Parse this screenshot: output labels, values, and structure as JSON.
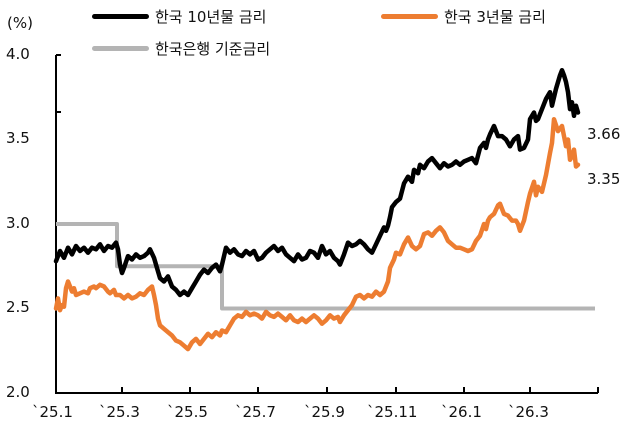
{
  "chart_data": {
    "type": "line",
    "title": "",
    "ylabel": "(%)",
    "xlabel": "",
    "ylim": [
      2.0,
      4.0
    ],
    "yticks": [
      "4.0",
      "3.5",
      "3.0",
      "2.5",
      "2.0"
    ],
    "xticks": [
      "`25.1",
      "`25.3",
      "`25.5",
      "`25.7",
      "`25.9",
      "`25.11",
      "`26.1",
      "`26.3"
    ],
    "grid": false,
    "legend_position": "top",
    "series": [
      {
        "name": "한국 10년물 금리",
        "color": "#000000",
        "end_value": "3.66",
        "points": [
          [
            56,
            2.78
          ],
          [
            60,
            2.84
          ],
          [
            64,
            2.8
          ],
          [
            68,
            2.86
          ],
          [
            72,
            2.82
          ],
          [
            76,
            2.87
          ],
          [
            80,
            2.84
          ],
          [
            84,
            2.86
          ],
          [
            88,
            2.83
          ],
          [
            92,
            2.86
          ],
          [
            96,
            2.85
          ],
          [
            100,
            2.88
          ],
          [
            104,
            2.84
          ],
          [
            108,
            2.87
          ],
          [
            112,
            2.86
          ],
          [
            116,
            2.89
          ],
          [
            118,
            2.85
          ],
          [
            120,
            2.76
          ],
          [
            122,
            2.71
          ],
          [
            124,
            2.74
          ],
          [
            128,
            2.81
          ],
          [
            132,
            2.79
          ],
          [
            136,
            2.82
          ],
          [
            140,
            2.8
          ],
          [
            144,
            2.81
          ],
          [
            148,
            2.83
          ],
          [
            150,
            2.85
          ],
          [
            154,
            2.8
          ],
          [
            156,
            2.76
          ],
          [
            160,
            2.68
          ],
          [
            164,
            2.66
          ],
          [
            168,
            2.69
          ],
          [
            172,
            2.63
          ],
          [
            176,
            2.61
          ],
          [
            180,
            2.58
          ],
          [
            184,
            2.6
          ],
          [
            188,
            2.58
          ],
          [
            192,
            2.62
          ],
          [
            196,
            2.66
          ],
          [
            200,
            2.7
          ],
          [
            204,
            2.73
          ],
          [
            208,
            2.71
          ],
          [
            212,
            2.74
          ],
          [
            216,
            2.76
          ],
          [
            220,
            2.72
          ],
          [
            222,
            2.76
          ],
          [
            226,
            2.86
          ],
          [
            230,
            2.83
          ],
          [
            234,
            2.85
          ],
          [
            238,
            2.82
          ],
          [
            242,
            2.81
          ],
          [
            246,
            2.84
          ],
          [
            250,
            2.82
          ],
          [
            254,
            2.84
          ],
          [
            258,
            2.79
          ],
          [
            262,
            2.8
          ],
          [
            266,
            2.83
          ],
          [
            270,
            2.85
          ],
          [
            274,
            2.87
          ],
          [
            278,
            2.84
          ],
          [
            282,
            2.86
          ],
          [
            286,
            2.82
          ],
          [
            290,
            2.8
          ],
          [
            294,
            2.78
          ],
          [
            298,
            2.82
          ],
          [
            302,
            2.79
          ],
          [
            306,
            2.8
          ],
          [
            310,
            2.84
          ],
          [
            314,
            2.83
          ],
          [
            318,
            2.8
          ],
          [
            322,
            2.87
          ],
          [
            326,
            2.82
          ],
          [
            330,
            2.84
          ],
          [
            334,
            2.8
          ],
          [
            338,
            2.78
          ],
          [
            340,
            2.76
          ],
          [
            344,
            2.82
          ],
          [
            348,
            2.89
          ],
          [
            352,
            2.87
          ],
          [
            356,
            2.88
          ],
          [
            360,
            2.9
          ],
          [
            364,
            2.88
          ],
          [
            368,
            2.85
          ],
          [
            372,
            2.83
          ],
          [
            376,
            2.88
          ],
          [
            380,
            2.93
          ],
          [
            384,
            2.98
          ],
          [
            386,
            2.96
          ],
          [
            388,
            2.99
          ],
          [
            390,
            3.04
          ],
          [
            392,
            3.1
          ],
          [
            396,
            3.13
          ],
          [
            400,
            3.15
          ],
          [
            404,
            3.24
          ],
          [
            408,
            3.28
          ],
          [
            412,
            3.25
          ],
          [
            414,
            3.32
          ],
          [
            418,
            3.3
          ],
          [
            420,
            3.35
          ],
          [
            424,
            3.33
          ],
          [
            428,
            3.37
          ],
          [
            432,
            3.39
          ],
          [
            436,
            3.36
          ],
          [
            440,
            3.33
          ],
          [
            444,
            3.36
          ],
          [
            448,
            3.34
          ],
          [
            452,
            3.35
          ],
          [
            456,
            3.37
          ],
          [
            460,
            3.35
          ],
          [
            464,
            3.37
          ],
          [
            468,
            3.38
          ],
          [
            472,
            3.39
          ],
          [
            476,
            3.36
          ],
          [
            480,
            3.45
          ],
          [
            484,
            3.48
          ],
          [
            486,
            3.45
          ],
          [
            488,
            3.5
          ],
          [
            490,
            3.53
          ],
          [
            494,
            3.58
          ],
          [
            498,
            3.52
          ],
          [
            502,
            3.52
          ],
          [
            506,
            3.5
          ],
          [
            510,
            3.46
          ],
          [
            514,
            3.5
          ],
          [
            518,
            3.52
          ],
          [
            520,
            3.44
          ],
          [
            524,
            3.45
          ],
          [
            528,
            3.5
          ],
          [
            530,
            3.62
          ],
          [
            534,
            3.66
          ],
          [
            536,
            3.61
          ],
          [
            538,
            3.62
          ],
          [
            542,
            3.68
          ],
          [
            546,
            3.74
          ],
          [
            550,
            3.78
          ],
          [
            552,
            3.7
          ],
          [
            556,
            3.8
          ],
          [
            560,
            3.88
          ],
          [
            562,
            3.91
          ],
          [
            564,
            3.88
          ],
          [
            566,
            3.84
          ],
          [
            568,
            3.78
          ],
          [
            570,
            3.68
          ],
          [
            572,
            3.72
          ],
          [
            574,
            3.64
          ],
          [
            576,
            3.7
          ],
          [
            578,
            3.66
          ]
        ]
      },
      {
        "name": "한국 3년물 금리",
        "color": "#ED7D31",
        "end_value": "3.35",
        "points": [
          [
            56,
            2.5
          ],
          [
            58,
            2.56
          ],
          [
            60,
            2.49
          ],
          [
            62,
            2.52
          ],
          [
            64,
            2.51
          ],
          [
            66,
            2.62
          ],
          [
            68,
            2.66
          ],
          [
            70,
            2.63
          ],
          [
            72,
            2.6
          ],
          [
            74,
            2.62
          ],
          [
            76,
            2.58
          ],
          [
            80,
            2.59
          ],
          [
            84,
            2.6
          ],
          [
            88,
            2.59
          ],
          [
            90,
            2.62
          ],
          [
            94,
            2.63
          ],
          [
            96,
            2.62
          ],
          [
            100,
            2.64
          ],
          [
            104,
            2.63
          ],
          [
            108,
            2.6
          ],
          [
            110,
            2.59
          ],
          [
            114,
            2.61
          ],
          [
            116,
            2.58
          ],
          [
            120,
            2.58
          ],
          [
            124,
            2.56
          ],
          [
            128,
            2.58
          ],
          [
            132,
            2.56
          ],
          [
            136,
            2.57
          ],
          [
            140,
            2.59
          ],
          [
            144,
            2.58
          ],
          [
            148,
            2.61
          ],
          [
            152,
            2.63
          ],
          [
            154,
            2.58
          ],
          [
            156,
            2.52
          ],
          [
            158,
            2.44
          ],
          [
            160,
            2.4
          ],
          [
            164,
            2.38
          ],
          [
            168,
            2.36
          ],
          [
            172,
            2.34
          ],
          [
            176,
            2.31
          ],
          [
            180,
            2.3
          ],
          [
            184,
            2.28
          ],
          [
            188,
            2.26
          ],
          [
            192,
            2.3
          ],
          [
            196,
            2.32
          ],
          [
            200,
            2.29
          ],
          [
            204,
            2.32
          ],
          [
            208,
            2.35
          ],
          [
            212,
            2.33
          ],
          [
            216,
            2.36
          ],
          [
            220,
            2.34
          ],
          [
            222,
            2.37
          ],
          [
            226,
            2.36
          ],
          [
            230,
            2.4
          ],
          [
            234,
            2.44
          ],
          [
            238,
            2.46
          ],
          [
            242,
            2.45
          ],
          [
            246,
            2.48
          ],
          [
            250,
            2.46
          ],
          [
            254,
            2.47
          ],
          [
            258,
            2.46
          ],
          [
            262,
            2.44
          ],
          [
            266,
            2.48
          ],
          [
            270,
            2.46
          ],
          [
            274,
            2.45
          ],
          [
            278,
            2.47
          ],
          [
            282,
            2.45
          ],
          [
            286,
            2.43
          ],
          [
            290,
            2.46
          ],
          [
            294,
            2.43
          ],
          [
            298,
            2.42
          ],
          [
            302,
            2.44
          ],
          [
            306,
            2.42
          ],
          [
            310,
            2.44
          ],
          [
            314,
            2.46
          ],
          [
            318,
            2.44
          ],
          [
            322,
            2.41
          ],
          [
            326,
            2.43
          ],
          [
            330,
            2.46
          ],
          [
            334,
            2.44
          ],
          [
            338,
            2.45
          ],
          [
            340,
            2.42
          ],
          [
            344,
            2.46
          ],
          [
            348,
            2.49
          ],
          [
            352,
            2.52
          ],
          [
            356,
            2.57
          ],
          [
            360,
            2.58
          ],
          [
            364,
            2.56
          ],
          [
            368,
            2.58
          ],
          [
            372,
            2.57
          ],
          [
            376,
            2.6
          ],
          [
            380,
            2.58
          ],
          [
            384,
            2.6
          ],
          [
            388,
            2.66
          ],
          [
            390,
            2.74
          ],
          [
            394,
            2.79
          ],
          [
            396,
            2.83
          ],
          [
            400,
            2.82
          ],
          [
            404,
            2.88
          ],
          [
            408,
            2.92
          ],
          [
            412,
            2.87
          ],
          [
            416,
            2.85
          ],
          [
            420,
            2.87
          ],
          [
            424,
            2.94
          ],
          [
            428,
            2.95
          ],
          [
            432,
            2.93
          ],
          [
            436,
            2.96
          ],
          [
            440,
            2.98
          ],
          [
            444,
            2.95
          ],
          [
            448,
            2.9
          ],
          [
            452,
            2.88
          ],
          [
            456,
            2.86
          ],
          [
            460,
            2.86
          ],
          [
            464,
            2.85
          ],
          [
            468,
            2.84
          ],
          [
            472,
            2.85
          ],
          [
            476,
            2.9
          ],
          [
            480,
            2.93
          ],
          [
            484,
            3.0
          ],
          [
            486,
            2.97
          ],
          [
            488,
            3.02
          ],
          [
            490,
            3.04
          ],
          [
            494,
            3.06
          ],
          [
            498,
            3.11
          ],
          [
            500,
            3.12
          ],
          [
            504,
            3.06
          ],
          [
            508,
            3.05
          ],
          [
            512,
            3.02
          ],
          [
            516,
            3.02
          ],
          [
            518,
            3.0
          ],
          [
            520,
            2.96
          ],
          [
            524,
            3.02
          ],
          [
            528,
            3.13
          ],
          [
            530,
            3.18
          ],
          [
            534,
            3.25
          ],
          [
            536,
            3.17
          ],
          [
            538,
            3.22
          ],
          [
            542,
            3.19
          ],
          [
            546,
            3.29
          ],
          [
            550,
            3.42
          ],
          [
            552,
            3.48
          ],
          [
            554,
            3.62
          ],
          [
            558,
            3.55
          ],
          [
            562,
            3.58
          ],
          [
            564,
            3.52
          ],
          [
            566,
            3.46
          ],
          [
            568,
            3.5
          ],
          [
            570,
            3.38
          ],
          [
            572,
            3.4
          ],
          [
            574,
            3.44
          ],
          [
            576,
            3.34
          ],
          [
            578,
            3.35
          ]
        ]
      },
      {
        "name": "한국은행 기준금리",
        "color": "#B4B4B4",
        "points": [
          [
            56,
            3.0
          ],
          [
            117,
            3.0
          ],
          [
            117,
            2.75
          ],
          [
            222,
            2.75
          ],
          [
            222,
            2.5
          ],
          [
            595,
            2.5
          ]
        ]
      }
    ]
  },
  "legend": {
    "items": [
      {
        "label": "한국 10년물 금리",
        "color": "#000000"
      },
      {
        "label": "한국 3년물 금리",
        "color": "#ED7D31"
      },
      {
        "label": "한국은행 기준금리",
        "color": "#B4B4B4"
      }
    ]
  },
  "axis": {
    "unit": "(%)",
    "y_labels": [
      "4.0",
      "3.5",
      "3.0",
      "2.5",
      "2.0"
    ],
    "x_labels": [
      "`25.1",
      "`25.3",
      "`25.5",
      "`25.7",
      "`25.9",
      "`25.11",
      "`26.1",
      "`26.3"
    ]
  },
  "end_labels": {
    "ten_year": "3.66",
    "three_year": "3.35"
  }
}
